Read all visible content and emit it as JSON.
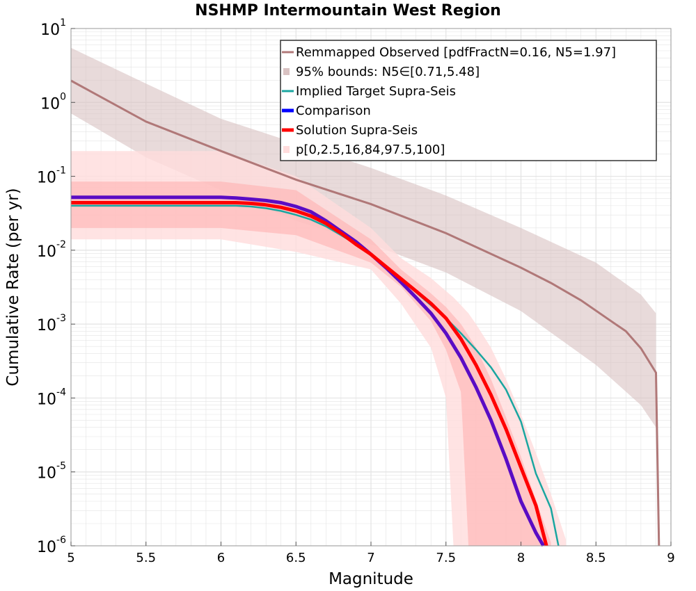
{
  "chart_data": {
    "type": "line",
    "title": "NSHMP Intermountain West Region",
    "xlabel": "Magnitude",
    "ylabel": "Cumulative Rate (per yr)",
    "xlim": [
      5,
      9
    ],
    "ylim": [
      1e-06,
      10
    ],
    "yscale": "log",
    "grid": true,
    "legend_position": "top-right",
    "x_ticks": [
      "5",
      "5.5",
      "6",
      "6.5",
      "7",
      "7.5",
      "8",
      "8.5",
      "9"
    ],
    "y_ticks": [
      {
        "base": "10",
        "exp": "-6"
      },
      {
        "base": "10",
        "exp": "-5"
      },
      {
        "base": "10",
        "exp": "-4"
      },
      {
        "base": "10",
        "exp": "-3"
      },
      {
        "base": "10",
        "exp": "-2"
      },
      {
        "base": "10",
        "exp": "-1"
      },
      {
        "base": "10",
        "exp": "0"
      },
      {
        "base": "10",
        "exp": "1"
      }
    ],
    "legend": [
      "Remmapped Observed [pdfFractN=0.16, N5=1.97]",
      "95% bounds: N5∈[0.71,5.48]",
      "Implied Target Supra-Seis",
      "Comparison",
      "Solution Supra-Seis",
      "p[0,2.5,16,84,97.5,100]"
    ],
    "colors": {
      "observed": "#b07878",
      "observed_band": "#d9c2c2",
      "implied_target": "#1aa6a0",
      "comparison": "#5a0cc4",
      "solution": "#ff0000",
      "band_outer": "#ffdcdc",
      "band_inner": "#ffb0b0",
      "grid": "#e3e3e3"
    },
    "series": [
      {
        "name": "Remmapped Observed [pdfFractN=0.16, N5=1.97]",
        "x": [
          5.0,
          5.5,
          6.0,
          6.5,
          7.0,
          7.5,
          8.0,
          8.2,
          8.4,
          8.6,
          8.7,
          8.8,
          8.9,
          8.92
        ],
        "y": [
          1.97,
          0.55,
          0.22,
          0.09,
          0.042,
          0.017,
          0.0058,
          0.0036,
          0.0021,
          0.0011,
          0.0008,
          0.00047,
          0.00022,
          1e-06
        ]
      },
      {
        "name": "95% bounds: N5∈[0.71,5.48]",
        "x": [
          5.0,
          5.5,
          6.0,
          6.5,
          7.0,
          7.5,
          8.0,
          8.5,
          8.8,
          8.9
        ],
        "upper": [
          5.48,
          1.8,
          0.6,
          0.28,
          0.13,
          0.055,
          0.02,
          0.0068,
          0.0025,
          0.0014
        ],
        "lower": [
          0.71,
          0.18,
          0.065,
          0.025,
          0.012,
          0.005,
          0.0015,
          0.00028,
          8e-05,
          4e-05
        ]
      },
      {
        "name": "Implied Target Supra-Seis",
        "x": [
          5.0,
          5.5,
          6.0,
          6.1,
          6.2,
          6.3,
          6.4,
          6.5,
          6.6,
          6.7,
          6.8,
          6.9,
          7.0,
          7.1,
          7.2,
          7.3,
          7.4,
          7.5,
          7.6,
          7.7,
          7.8,
          7.9,
          8.0,
          8.1,
          8.2,
          8.25
        ],
        "y": [
          0.04,
          0.04,
          0.04,
          0.04,
          0.039,
          0.037,
          0.034,
          0.03,
          0.026,
          0.021,
          0.016,
          0.012,
          0.0085,
          0.0059,
          0.004,
          0.0027,
          0.0018,
          0.0012,
          0.00075,
          0.00045,
          0.00026,
          0.00013,
          4.8e-05,
          9.5e-06,
          3.2e-06,
          1e-06
        ]
      },
      {
        "name": "Comparison",
        "x": [
          5.0,
          5.5,
          6.0,
          6.1,
          6.2,
          6.3,
          6.4,
          6.5,
          6.6,
          6.7,
          6.8,
          6.9,
          7.0,
          7.1,
          7.2,
          7.3,
          7.4,
          7.5,
          7.6,
          7.7,
          7.8,
          7.9,
          8.0,
          8.1,
          8.15
        ],
        "y": [
          0.052,
          0.052,
          0.052,
          0.051,
          0.049,
          0.047,
          0.044,
          0.039,
          0.033,
          0.025,
          0.018,
          0.013,
          0.0088,
          0.0058,
          0.0037,
          0.0023,
          0.0014,
          0.00075,
          0.00035,
          0.00014,
          5e-05,
          1.5e-05,
          4e-06,
          1.5e-06,
          1e-06
        ]
      },
      {
        "name": "Solution Supra-Seis",
        "x": [
          5.0,
          5.5,
          6.0,
          6.1,
          6.2,
          6.3,
          6.4,
          6.5,
          6.6,
          6.7,
          6.8,
          6.9,
          7.0,
          7.1,
          7.2,
          7.3,
          7.4,
          7.5,
          7.6,
          7.7,
          7.8,
          7.9,
          8.0,
          8.1,
          8.17
        ],
        "y": [
          0.044,
          0.044,
          0.044,
          0.044,
          0.043,
          0.041,
          0.038,
          0.034,
          0.029,
          0.023,
          0.017,
          0.012,
          0.0088,
          0.006,
          0.0041,
          0.0028,
          0.0019,
          0.0012,
          0.00063,
          0.00028,
          0.00011,
          3.8e-05,
          1.15e-05,
          3.5e-06,
          1e-06
        ]
      },
      {
        "name": "p[0,2.5,16,84,97.5,100]",
        "outer": {
          "x": [
            5.0,
            5.5,
            6.0,
            6.5,
            7.0,
            7.2,
            7.4,
            7.5,
            7.55,
            7.6,
            7.65,
            7.7,
            7.8,
            7.9,
            8.0,
            8.1,
            8.2,
            8.3
          ],
          "upper": [
            0.22,
            0.22,
            0.22,
            0.1,
            0.02,
            0.0078,
            0.0042,
            0.0028,
            0.0023,
            0.0018,
            0.0014,
            0.001,
            0.00048,
            0.00018,
            6e-05,
            1.8e-05,
            5e-06,
            1.2e-06
          ],
          "lower": [
            0.014,
            0.014,
            0.014,
            0.0095,
            0.0055,
            0.0019,
            0.00048,
            0.0001,
            1e-06,
            1e-06,
            1e-06,
            1e-06,
            1e-06,
            1e-06,
            1e-06,
            1e-06,
            1e-06,
            1e-06
          ]
        },
        "inner": {
          "x": [
            5.0,
            5.5,
            6.0,
            6.5,
            7.0,
            7.2,
            7.4,
            7.5,
            7.6,
            7.65,
            7.7,
            7.8,
            7.9,
            8.0,
            8.1,
            8.2
          ],
          "upper": [
            0.085,
            0.085,
            0.085,
            0.065,
            0.014,
            0.0055,
            0.0026,
            0.0017,
            0.001,
            0.0007,
            0.00048,
            0.00018,
            5.5e-05,
            1.6e-05,
            4.2e-06,
            1.1e-06
          ],
          "lower": [
            0.02,
            0.02,
            0.02,
            0.016,
            0.0068,
            0.0032,
            0.0011,
            0.00045,
            0.00012,
            1e-06,
            1e-06,
            1e-06,
            1e-06,
            1e-06,
            1e-06,
            1e-06
          ]
        }
      }
    ]
  }
}
